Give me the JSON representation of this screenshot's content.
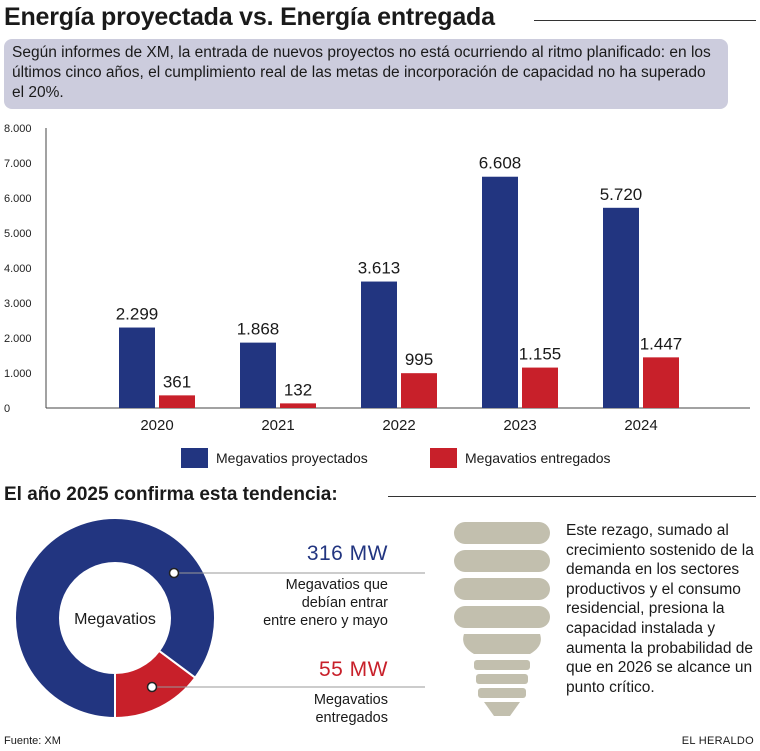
{
  "header": {
    "title": "Energía proyectada vs. Energía entregada",
    "intro": "Según informes de XM, la entrada de nuevos proyectos no está ocurriendo al ritmo planificado: en los últimos cinco años, el cumplimiento real de las metas de incorporación de capacidad no ha superado el 20%."
  },
  "chart_data": {
    "type": "bar",
    "categories": [
      "2020",
      "2021",
      "2022",
      "2023",
      "2024"
    ],
    "series": [
      {
        "name": "Megavatios proyectados",
        "values": [
          2299,
          1868,
          3613,
          6608,
          5720
        ],
        "labels": [
          "2.299",
          "1.868",
          "3.613",
          "6.608",
          "5.720"
        ],
        "color": "#223580"
      },
      {
        "name": "Megavatios entregados",
        "values": [
          361,
          132,
          995,
          1155,
          1447
        ],
        "labels": [
          "361",
          "132",
          "995",
          "1.155",
          "1.447"
        ],
        "color": "#c8202a"
      }
    ],
    "yticks": [
      "0",
      "1.000",
      "2.000",
      "3.000",
      "4.000",
      "5.000",
      "6.000",
      "7.000",
      "8.000"
    ],
    "ylim": [
      0,
      8000
    ],
    "grid": false,
    "legend": "bottom"
  },
  "section2": {
    "subtitle": "El año 2025 confirma esta tendencia:",
    "donut": {
      "center_label": "Megavatios",
      "values": [
        316,
        55
      ],
      "colors": [
        "#223580",
        "#c8202a"
      ]
    },
    "projected_value": "316 MW",
    "projected_label_lines": [
      "Megavatios que",
      "debían entrar",
      "entre enero y mayo"
    ],
    "delivered_value": "55 MW",
    "delivered_label_lines": [
      "Megavatios",
      "entregados"
    ],
    "side_text": "Este rezago, sumado al crecimiento sostenido de la demanda en los sectores productivos y el consumo residencial, presiona la capacidad instalada y aumenta la probabilidad de que en 2026 se alcance un punto crítico."
  },
  "footer": {
    "source": "Fuente: XM",
    "brand": "EL HERALDO"
  },
  "colors": {
    "accent_blue": "#223580",
    "accent_red": "#c8202a",
    "intro_bg": "#ccccdd",
    "bulb": "#c2bfae"
  },
  "icons": {
    "bulb": "light-bulb-icon"
  }
}
